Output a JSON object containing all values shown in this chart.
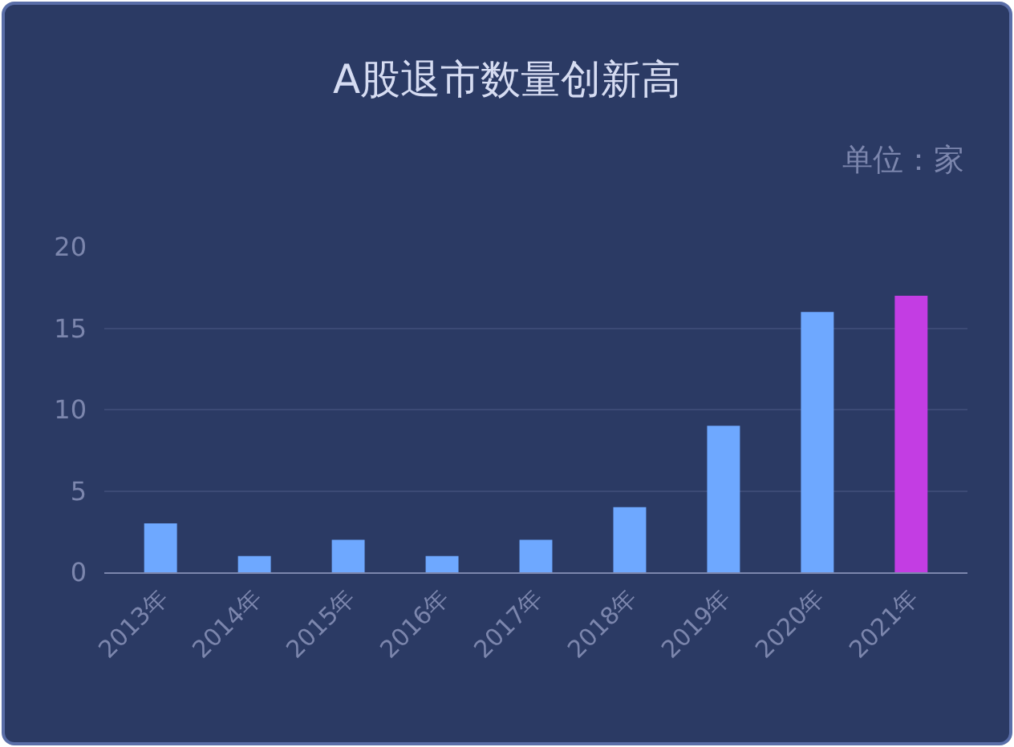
{
  "chart_data": {
    "type": "bar",
    "title": "A股退市数量创新高",
    "subtitle": "单位：家",
    "categories": [
      "2013年",
      "2014年",
      "2015年",
      "2016年",
      "2017年",
      "2018年",
      "2019年",
      "2020年",
      "2021年"
    ],
    "values": [
      3,
      1,
      2,
      1,
      2,
      4,
      9,
      16,
      17
    ],
    "colors": [
      "#6ea8ff",
      "#6ea8ff",
      "#6ea8ff",
      "#6ea8ff",
      "#6ea8ff",
      "#6ea8ff",
      "#6ea8ff",
      "#6ea8ff",
      "#c33de3"
    ],
    "ylim": [
      0,
      20
    ],
    "yticks": [
      0,
      5,
      10,
      15,
      20
    ],
    "grid": "y"
  }
}
